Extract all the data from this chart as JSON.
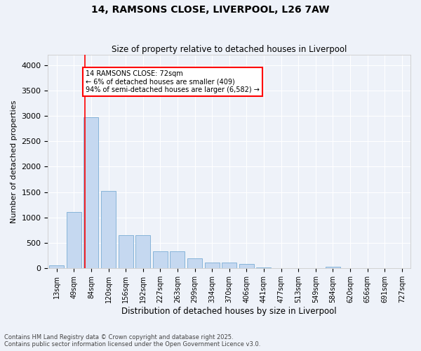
{
  "title": "14, RAMSONS CLOSE, LIVERPOOL, L26 7AW",
  "subtitle": "Size of property relative to detached houses in Liverpool",
  "xlabel": "Distribution of detached houses by size in Liverpool",
  "ylabel": "Number of detached properties",
  "bar_color": "#c5d8f0",
  "bar_edge_color": "#7aadd4",
  "background_color": "#eef2f9",
  "grid_color": "#ffffff",
  "categories": [
    "13sqm",
    "49sqm",
    "84sqm",
    "120sqm",
    "156sqm",
    "192sqm",
    "227sqm",
    "263sqm",
    "299sqm",
    "334sqm",
    "370sqm",
    "406sqm",
    "441sqm",
    "477sqm",
    "513sqm",
    "549sqm",
    "584sqm",
    "620sqm",
    "656sqm",
    "691sqm",
    "727sqm"
  ],
  "values": [
    60,
    1110,
    2970,
    1520,
    650,
    650,
    340,
    340,
    200,
    120,
    120,
    80,
    15,
    0,
    0,
    0,
    35,
    5,
    0,
    0,
    0
  ],
  "ylim": [
    0,
    4200
  ],
  "yticks": [
    0,
    500,
    1000,
    1500,
    2000,
    2500,
    3000,
    3500,
    4000
  ],
  "property_line_x": 1.62,
  "annotation_title": "14 RAMSONS CLOSE: 72sqm",
  "annotation_line1": "← 6% of detached houses are smaller (409)",
  "annotation_line2": "94% of semi-detached houses are larger (6,582) →",
  "footnote1": "Contains HM Land Registry data © Crown copyright and database right 2025.",
  "footnote2": "Contains public sector information licensed under the Open Government Licence v3.0."
}
